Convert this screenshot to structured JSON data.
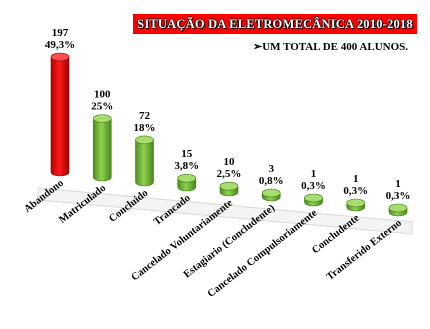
{
  "chart_data": {
    "type": "bar",
    "title": "SITUAÇÃO DA ELETROMECÂNICA 2010-2018",
    "subtitle": "UM TOTAL DE 400 ALUNOS.",
    "categories": [
      "Abandono",
      "Matriculado",
      "Concluido",
      "Trancado",
      "Cancelado Voluntariamente",
      "Estagiario (Concludente)",
      "Cancelado Compulsoriamente",
      "Concludente",
      "Transferido Externo"
    ],
    "values": [
      197,
      100,
      72,
      15,
      10,
      3,
      1,
      1,
      1
    ],
    "percent_labels": [
      "49,3%",
      "25%",
      "18%",
      "3,8%",
      "2,5%",
      "0,8%",
      "0,3%",
      "0,3%",
      "0,3%"
    ],
    "value_labels": [
      "197",
      "100",
      "72",
      "15",
      "10",
      "3",
      "1",
      "1",
      "1"
    ],
    "colors": {
      "highlight": "#ff0000",
      "bars": "#7ac142",
      "title_bg": "#ff0000",
      "title_text": "#ffffff"
    },
    "grid": false,
    "legend": "none"
  }
}
